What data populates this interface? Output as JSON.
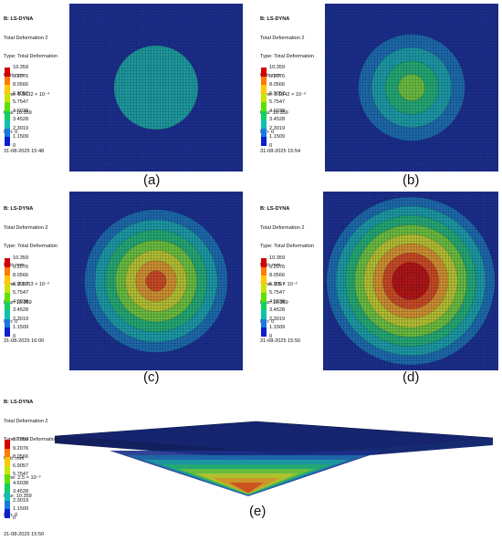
{
  "panels": [
    {
      "caption": "(a)",
      "app": "B: LS-DYNA",
      "result": "Total Deformation 2",
      "type": "Type: Total Deformation",
      "unit": "Unit: mm",
      "time": "Time: 5.3632 × 10⁻⁴",
      "max": "Max: 10.359",
      "min": "Min: 0",
      "date": "31-08-2025 15:48",
      "deformation_level": 0.15
    },
    {
      "caption": "(b)",
      "app": "B: LS-DYNA",
      "result": "Total Deformation 2",
      "type": "Type: Total Deformation",
      "unit": "Unit: mm",
      "time": "Time: 1.1842 × 10⁻³",
      "max": "Max: 10.359",
      "min": "Min: 0",
      "date": "31-08-2025 15:54",
      "deformation_level": 0.4
    },
    {
      "caption": "(c)",
      "app": "B: LS-DYNA",
      "result": "Total Deformation 2",
      "type": "Type: Total Deformation",
      "unit": "Unit: mm",
      "time": "Time: 2.1053 × 10⁻³",
      "max": "Max: 10.359",
      "min": "Min: 0",
      "date": "31-08-2025 16:00",
      "deformation_level": 0.75
    },
    {
      "caption": "(d)",
      "app": "B: LS-DYNA",
      "result": "Total Deformation 2",
      "type": "Type: Total Deformation",
      "unit": "Unit: mm",
      "time": "Time: 2.5 × 10⁻³",
      "max": "Max: 10.359",
      "min": "Min: 0",
      "date": "31-08-2025 15:50",
      "deformation_level": 1.0
    },
    {
      "caption": "(e)",
      "app": "B: LS-DYNA",
      "result": "Total Deformation 2",
      "type": "Type: Total Deformation",
      "unit": "Unit: mm",
      "time": "Time: 2.5 × 10⁻³",
      "max": "Max: 10.359",
      "min": "Min: 0",
      "date": "31-08-2025 15:50",
      "deformation_level": 1.0
    }
  ],
  "legend": {
    "labels": [
      "10.359",
      "9.2076",
      "8.0566",
      "6.9057",
      "5.7547",
      "4.6038",
      "3.4528",
      "2.3019",
      "1.1509",
      "0"
    ],
    "colors": [
      "#d60000",
      "#ff7a00",
      "#ffc800",
      "#c8e600",
      "#5fe000",
      "#10d060",
      "#10c0b0",
      "#1a78e0",
      "#0a20d0"
    ]
  },
  "colors": {
    "mesh_background": "#1c2e8a",
    "mesh_line": "#0a144a",
    "plate_top": "#1a2a7a"
  }
}
